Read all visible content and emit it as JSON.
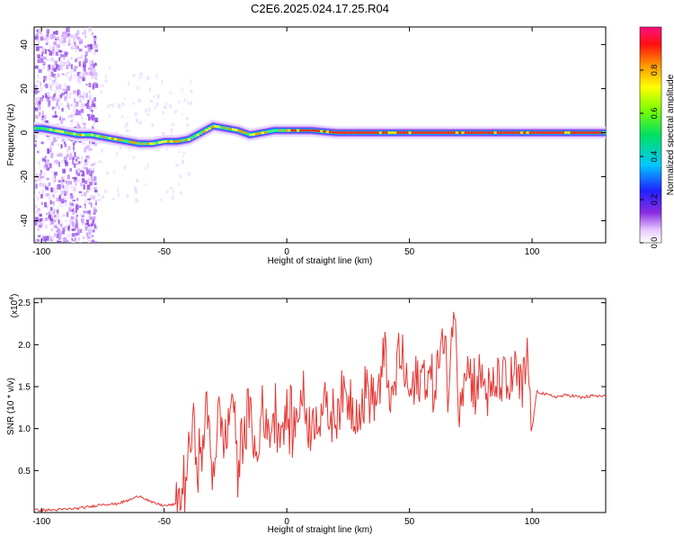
{
  "title": "C2E6.2025.024.17.25.R04",
  "colors": {
    "snr_line": "#e53935",
    "background": "#ffffff",
    "axis": "#000000"
  },
  "chart_data": [
    {
      "type": "heatmap",
      "xlabel": "Height of straight line (km)",
      "ylabel": "Frequency (Hz)",
      "xlim": [
        -103,
        130
      ],
      "ylim": [
        -50,
        48
      ],
      "x_ticks": [
        -100,
        -50,
        0,
        50,
        100
      ],
      "y_ticks": [
        -40,
        -20,
        0,
        20,
        40
      ],
      "colorbar": {
        "label": "Normalized spectral amplitude",
        "range": [
          0,
          1
        ],
        "ticks": [
          "0.0",
          "0.2",
          "0.4",
          "0.6",
          "0.8"
        ],
        "colormap": "rainbow (white → violet → blue → cyan → green → yellow → red → magenta)"
      },
      "ridge": {
        "description": "Peak frequency trace vs height",
        "x": [
          -100,
          -95,
          -90,
          -85,
          -80,
          -75,
          -70,
          -65,
          -60,
          -55,
          -50,
          -45,
          -40,
          -35,
          -30,
          -25,
          -20,
          -15,
          -10,
          -5,
          0,
          10,
          20,
          40,
          60,
          80,
          100,
          130
        ],
        "y": [
          2,
          1,
          0,
          -1,
          -1,
          -2,
          -3,
          -4,
          -5,
          -5,
          -4,
          -4,
          -3,
          0,
          3,
          2,
          1,
          -1,
          0,
          1,
          1,
          1,
          0,
          0,
          0,
          0,
          0,
          0
        ]
      }
    },
    {
      "type": "line",
      "xlabel": "Height of straight line (km)",
      "ylabel": "SNR (10 * v/v)",
      "y_scale_label": "(x10",
      "y_scale_exp": "4",
      "y_scale_suffix": ")",
      "xlim": [
        -103,
        130
      ],
      "ylim": [
        0,
        2.55
      ],
      "x_ticks": [
        -100,
        -50,
        0,
        50,
        100
      ],
      "y_ticks": [
        "0.5",
        "1.0",
        "1.5",
        "2.0",
        "2.5"
      ],
      "series": [
        {
          "x": [
            -103,
            -95,
            -85,
            -80,
            -75,
            -70,
            -65,
            -60,
            -58,
            -55,
            -50,
            -45,
            -42,
            -40,
            -38,
            -35,
            -33,
            -30,
            -28,
            -25,
            -22,
            -20,
            -18,
            -15,
            -12,
            -10,
            -8,
            -5,
            -2,
            0,
            3,
            6,
            10,
            14,
            18,
            22,
            26,
            30,
            33,
            36,
            40,
            43,
            46,
            50,
            53,
            56,
            60,
            63,
            66,
            68,
            70,
            73,
            76,
            80,
            83,
            86,
            90,
            93,
            96,
            98,
            100,
            102,
            106,
            110,
            115,
            120,
            125,
            130
          ],
          "y": [
            0.03,
            0.03,
            0.05,
            0.07,
            0.1,
            0.1,
            0.14,
            0.2,
            0.17,
            0.12,
            0.08,
            0.1,
            0.3,
            0.7,
            1.0,
            0.5,
            1.3,
            0.5,
            1.2,
            0.8,
            1.5,
            0.4,
            1.0,
            1.2,
            0.5,
            1.4,
            0.9,
            1.2,
            1.0,
            1.15,
            1.0,
            1.4,
            1.0,
            1.3,
            1.1,
            1.4,
            1.35,
            1.2,
            1.5,
            1.3,
            1.8,
            1.25,
            1.95,
            1.4,
            1.5,
            1.7,
            1.45,
            2.05,
            1.5,
            2.5,
            1.4,
            1.8,
            1.55,
            1.6,
            1.3,
            1.6,
            1.45,
            1.7,
            1.35,
            1.9,
            1.0,
            1.45,
            1.4,
            1.38,
            1.4,
            1.37,
            1.39,
            1.38
          ]
        }
      ]
    }
  ]
}
